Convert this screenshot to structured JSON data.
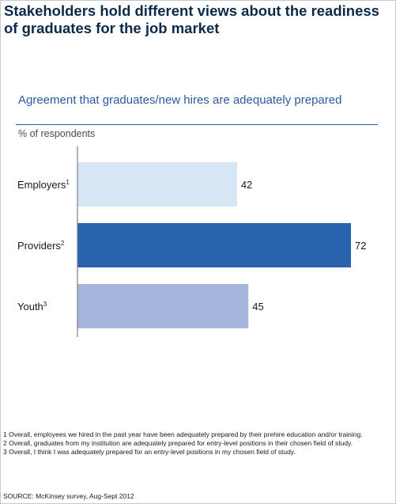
{
  "title": "Stakeholders hold different views about the readiness of graduates for the job market",
  "chart_data": {
    "type": "bar",
    "orientation": "horizontal",
    "title": "Agreement that graduates/new hires are adequately prepared",
    "unit": "% of respondents",
    "categories": [
      {
        "label": "Employers",
        "note": "1"
      },
      {
        "label": "Providers",
        "note": "2"
      },
      {
        "label": "Youth",
        "note": "3"
      }
    ],
    "values": [
      42,
      72,
      45
    ],
    "colors": [
      "#d6e6f4",
      "#2a63ad",
      "#a6b6dc"
    ],
    "xlim": [
      0,
      72
    ],
    "axis_line_color": "#7f7f7f",
    "grid": false
  },
  "footnotes": [
    "1 Overall, employees we hired in the past year have been adequately prepared by their prehire education and/or training.",
    "2 Overall, graduates from my institution are adequately prepared for entry-level positions in their chosen field of study.",
    "3 Overall, I think I was adequately prepared for an entry-level positions in my chosen field of study."
  ],
  "source": "SOURCE: McKinsey survey, Aug-Sept 2012"
}
